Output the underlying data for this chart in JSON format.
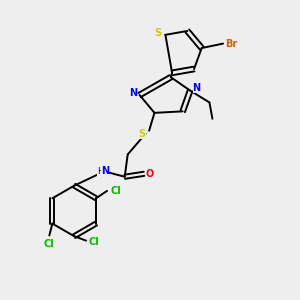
{
  "bg_color": "#eeeeee",
  "bond_color": "#000000",
  "colors": {
    "S": "#cccc00",
    "N": "#0000ff",
    "O": "#ff0000",
    "Cl": "#00bb00",
    "Br": "#cc6600",
    "C": "#000000",
    "H": "#000000"
  },
  "lw": 1.4,
  "dbo": 0.008
}
